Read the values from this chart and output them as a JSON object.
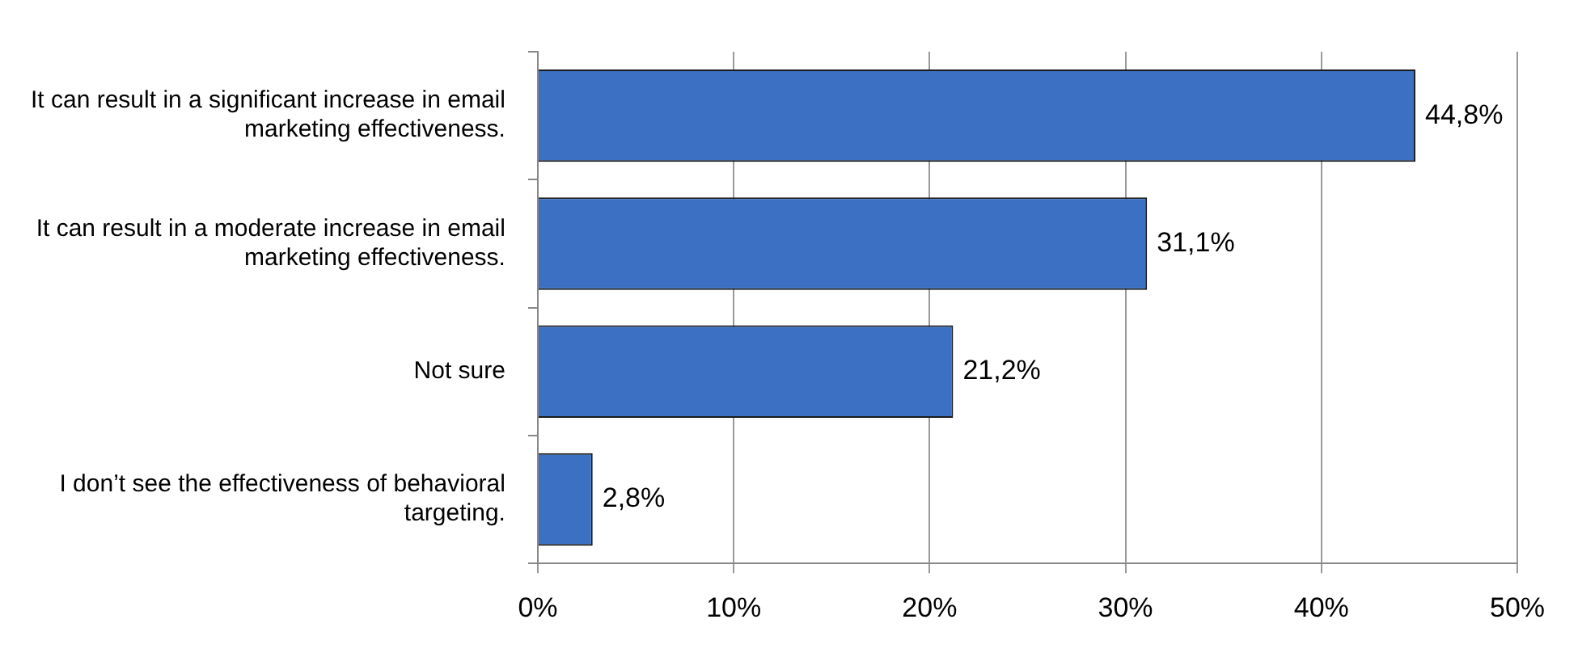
{
  "chart_data": {
    "type": "bar",
    "orientation": "horizontal",
    "categories": [
      "It can result in a significant increase in email marketing effectiveness.",
      "It can result in a moderate increase in email marketing effectiveness.",
      "Not sure",
      "I don’t see the effectiveness of behavioral targeting."
    ],
    "values": [
      44.8,
      31.1,
      21.2,
      2.8
    ],
    "value_labels": [
      "44,8%",
      "31,1%",
      "21,2%",
      "2,8%"
    ],
    "color": "#3b70c2",
    "xlim": [
      0,
      50
    ],
    "xticks": [
      {
        "value": 0,
        "label": "0%"
      },
      {
        "value": 10,
        "label": "10%"
      },
      {
        "value": 20,
        "label": "20%"
      },
      {
        "value": 30,
        "label": "30%"
      },
      {
        "value": 40,
        "label": "40%"
      },
      {
        "value": 50,
        "label": "50%"
      }
    ],
    "grid": "x"
  }
}
